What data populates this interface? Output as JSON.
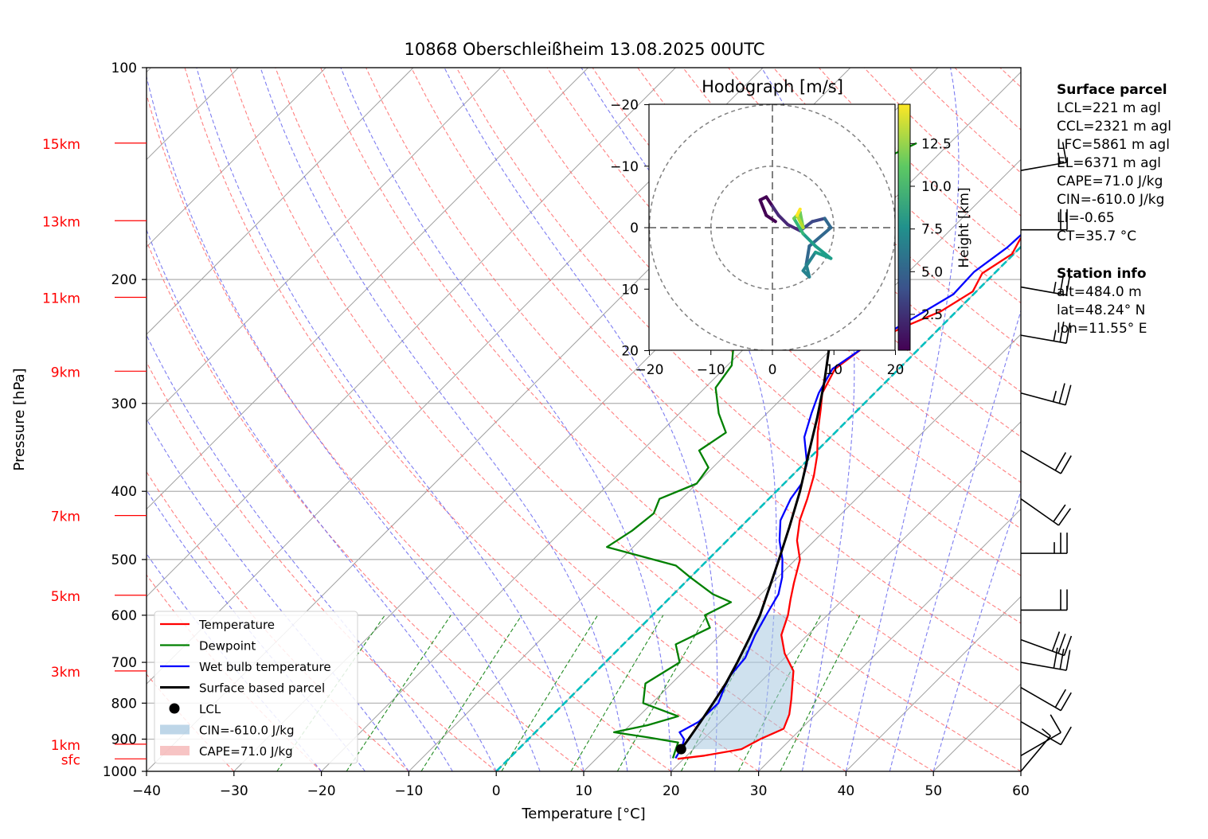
{
  "title": "10868 Oberschleißheim 13.08.2025 00UTC",
  "colors": {
    "temperature": "#ff0000",
    "dewpoint": "#008000",
    "wetbulb": "#0000ff",
    "parcel": "#000000",
    "cin_fill": "#a8c8e0",
    "cape_fill": "#f4b0b0",
    "dry_adiabat": "#ff6060",
    "moist_adiabat": "#6666ee",
    "mixing_ratio": "#228b22",
    "isotherm": "#a0a0a0",
    "zero_isotherm": "#00bfbf",
    "height_label": "#ff0000"
  },
  "chart_data": {
    "type": "line",
    "subtype": "skew-T log-P",
    "title": "10868 Oberschleißheim 13.08.2025 00UTC",
    "xlabel": "Temperature [°C]",
    "ylabel": "Pressure [hPa]",
    "xlim": [
      -40,
      60
    ],
    "ylim": [
      1000,
      100
    ],
    "y_scale": "log",
    "grid": true,
    "x_ticks": [
      "−40",
      "−30",
      "−20",
      "−10",
      "0",
      "10",
      "20",
      "30",
      "40",
      "50",
      "60"
    ],
    "y_ticks": [
      "100",
      "200",
      "300",
      "400",
      "500",
      "600",
      "700",
      "800",
      "900",
      "1000"
    ],
    "height_labels": [
      {
        "label": "15km",
        "p": 128
      },
      {
        "label": "13km",
        "p": 165
      },
      {
        "label": "11km",
        "p": 212
      },
      {
        "label": "9km",
        "p": 270
      },
      {
        "label": "7km",
        "p": 433
      },
      {
        "label": "5km",
        "p": 562
      },
      {
        "label": "3km",
        "p": 720
      },
      {
        "label": "1km",
        "p": 915
      },
      {
        "label": "sfc",
        "p": 960
      }
    ],
    "series": [
      {
        "name": "Temperature",
        "points": [
          [
            1.2,
            128
          ],
          [
            0.5,
            135
          ],
          [
            -0.8,
            140
          ],
          [
            -0.2,
            147
          ],
          [
            0.3,
            157
          ],
          [
            -0.5,
            166
          ],
          [
            -1.0,
            175
          ],
          [
            -0.2,
            184
          ],
          [
            -1.4,
            196
          ],
          [
            -0.4,
            208
          ],
          [
            -1.8,
            222
          ],
          [
            -4.5,
            235
          ],
          [
            -6.5,
            250
          ],
          [
            -7.3,
            268
          ],
          [
            -6.0,
            290
          ],
          [
            -4.4,
            305
          ],
          [
            -2.0,
            330
          ],
          [
            0.5,
            355
          ],
          [
            2.5,
            380
          ],
          [
            4.4,
            410
          ],
          [
            6.0,
            440
          ],
          [
            8.0,
            470
          ],
          [
            10.5,
            500
          ],
          [
            12.5,
            540
          ],
          [
            14.0,
            570
          ],
          [
            15.5,
            600
          ],
          [
            17.0,
            640
          ],
          [
            19.5,
            680
          ],
          [
            22.5,
            720
          ],
          [
            25.5,
            790
          ],
          [
            27.0,
            830
          ],
          [
            28.0,
            870
          ],
          [
            26.5,
            900
          ],
          [
            25.5,
            930
          ],
          [
            22.0,
            950
          ],
          [
            19.3,
            960
          ]
        ]
      },
      {
        "name": "Dewpoint",
        "points": [
          [
            -23.8,
            128
          ],
          [
            -25.8,
            135
          ],
          [
            -27.2,
            145
          ],
          [
            -27.5,
            160
          ],
          [
            -28.5,
            180
          ],
          [
            -28.9,
            200
          ],
          [
            -28.0,
            220
          ],
          [
            -27.5,
            230
          ],
          [
            -22.0,
            245
          ],
          [
            -19.5,
            265
          ],
          [
            -18.8,
            285
          ],
          [
            -15.5,
            310
          ],
          [
            -12.5,
            330
          ],
          [
            -13.5,
            350
          ],
          [
            -10.5,
            370
          ],
          [
            -10.0,
            390
          ],
          [
            -12.5,
            410
          ],
          [
            -11.5,
            430
          ],
          [
            -12.0,
            455
          ],
          [
            -13.0,
            480
          ],
          [
            -3.0,
            510
          ],
          [
            0.0,
            530
          ],
          [
            4.5,
            560
          ],
          [
            7.5,
            575
          ],
          [
            6.0,
            600
          ],
          [
            8.0,
            625
          ],
          [
            6.0,
            660
          ],
          [
            8.5,
            700
          ],
          [
            7.0,
            750
          ],
          [
            9.0,
            800
          ],
          [
            14.5,
            835
          ],
          [
            12.0,
            860
          ],
          [
            9.0,
            880
          ],
          [
            13.5,
            895
          ],
          [
            17.5,
            910
          ],
          [
            18.0,
            930
          ],
          [
            18.7,
            958
          ]
        ]
      },
      {
        "name": "Wet bulb temperature",
        "points": [
          [
            1.0,
            128
          ],
          [
            0.3,
            135
          ],
          [
            -1.0,
            142
          ],
          [
            -0.3,
            150
          ],
          [
            -1.2,
            165
          ],
          [
            -1.5,
            180
          ],
          [
            -2.5,
            195
          ],
          [
            -2.3,
            210
          ],
          [
            -4.5,
            230
          ],
          [
            -6.5,
            250
          ],
          [
            -7.6,
            268
          ],
          [
            -6.4,
            290
          ],
          [
            -4.9,
            310
          ],
          [
            -3.0,
            335
          ],
          [
            0.3,
            365
          ],
          [
            2.0,
            390
          ],
          [
            2.5,
            410
          ],
          [
            3.8,
            440
          ],
          [
            6.0,
            470
          ],
          [
            8.5,
            500
          ],
          [
            10.5,
            530
          ],
          [
            12.0,
            560
          ],
          [
            13.0,
            600
          ],
          [
            14.0,
            640
          ],
          [
            15.5,
            690
          ],
          [
            15.8,
            730
          ],
          [
            16.5,
            760
          ],
          [
            17.6,
            800
          ],
          [
            17.5,
            850
          ],
          [
            16.5,
            880
          ],
          [
            17.8,
            900
          ],
          [
            18.5,
            925
          ],
          [
            19.0,
            958
          ]
        ]
      },
      {
        "name": "Surface based parcel",
        "points": [
          [
            -27.5,
            128
          ],
          [
            -26.0,
            140
          ],
          [
            -24.0,
            155
          ],
          [
            -21.6,
            170
          ],
          [
            -18.5,
            190
          ],
          [
            -15.0,
            215
          ],
          [
            -11.0,
            245
          ],
          [
            -7.0,
            280
          ],
          [
            -3.7,
            315
          ],
          [
            -0.9,
            350
          ],
          [
            2.7,
            400
          ],
          [
            5.6,
            450
          ],
          [
            8.1,
            500
          ],
          [
            10.3,
            550
          ],
          [
            12.3,
            600
          ],
          [
            13.8,
            650
          ],
          [
            15.1,
            700
          ],
          [
            16.2,
            750
          ],
          [
            17.0,
            800
          ],
          [
            17.7,
            850
          ],
          [
            18.3,
            900
          ],
          [
            18.6,
            930
          ]
        ]
      }
    ],
    "lcl": {
      "label": "LCL",
      "t": 18.6,
      "p": 930
    },
    "legend": {
      "position": "lower-left",
      "entries": [
        "Temperature",
        "Dewpoint",
        "Wet bulb temperature",
        "Surface based parcel",
        "LCL",
        "CIN=-610.0 J/kg",
        "CAPE=71.0 J/kg"
      ]
    },
    "hodograph": {
      "title": "Hodograph [m/s]",
      "xlim": [
        -20,
        20
      ],
      "ylim": [
        -20,
        20
      ],
      "ticks": [
        "−20",
        "−10",
        "0",
        "10",
        "20"
      ],
      "rings": [
        10,
        20
      ],
      "colorbar_label": "Height [km]",
      "colorbar_ticks": [
        "2.5",
        "5.0",
        "7.5",
        "10.0",
        "12.5"
      ],
      "trace": [
        {
          "u": 0.5,
          "v": 1.0,
          "h": 0.5
        },
        {
          "u": -1.0,
          "v": 2.0,
          "h": 0.8
        },
        {
          "u": -2.0,
          "v": 4.5,
          "h": 1.1
        },
        {
          "u": -1.0,
          "v": 5.0,
          "h": 1.3
        },
        {
          "u": 0.0,
          "v": 3.5,
          "h": 1.5
        },
        {
          "u": 1.0,
          "v": 2.0,
          "h": 1.8
        },
        {
          "u": 2.5,
          "v": 0.5,
          "h": 2.2
        },
        {
          "u": 4.5,
          "v": -0.5,
          "h": 3.0
        },
        {
          "u": 6.5,
          "v": 1.0,
          "h": 3.8
        },
        {
          "u": 8.5,
          "v": 1.5,
          "h": 4.5
        },
        {
          "u": 9.5,
          "v": 0.0,
          "h": 5.2
        },
        {
          "u": 6.0,
          "v": -3.0,
          "h": 5.8
        },
        {
          "u": 5.5,
          "v": -6.0,
          "h": 6.2
        },
        {
          "u": 6.0,
          "v": -8.0,
          "h": 6.6
        },
        {
          "u": 5.0,
          "v": -7.0,
          "h": 7.0
        },
        {
          "u": 7.0,
          "v": -4.0,
          "h": 7.5
        },
        {
          "u": 9.5,
          "v": -5.0,
          "h": 8.0
        },
        {
          "u": 7.0,
          "v": -3.0,
          "h": 8.6
        },
        {
          "u": 5.0,
          "v": -1.0,
          "h": 9.5
        },
        {
          "u": 3.5,
          "v": 1.5,
          "h": 10.5
        },
        {
          "u": 4.5,
          "v": 2.5,
          "h": 11.5
        },
        {
          "u": 5.0,
          "v": 0.0,
          "h": 12.5
        },
        {
          "u": 4.0,
          "v": 2.0,
          "h": 13.5
        },
        {
          "u": 4.5,
          "v": 3.0,
          "h": 14.5
        }
      ]
    },
    "wind_barbs": [
      {
        "p": 140,
        "dir": 260,
        "speed": 15
      },
      {
        "p": 170,
        "dir": 270,
        "speed": 20
      },
      {
        "p": 205,
        "dir": 280,
        "speed": 25
      },
      {
        "p": 240,
        "dir": 280,
        "speed": 25
      },
      {
        "p": 290,
        "dir": 285,
        "speed": 25
      },
      {
        "p": 350,
        "dir": 300,
        "speed": 20
      },
      {
        "p": 410,
        "dir": 305,
        "speed": 20
      },
      {
        "p": 490,
        "dir": 270,
        "speed": 25
      },
      {
        "p": 590,
        "dir": 270,
        "speed": 20
      },
      {
        "p": 650,
        "dir": 290,
        "speed": 30
      },
      {
        "p": 700,
        "dir": 280,
        "speed": 30
      },
      {
        "p": 760,
        "dir": 300,
        "speed": 20
      },
      {
        "p": 850,
        "dir": 300,
        "speed": 10
      },
      {
        "p": 950,
        "dir": 240,
        "speed": 10
      },
      {
        "p": 1000,
        "dir": 220,
        "speed": 5
      }
    ]
  },
  "info": {
    "surface_parcel_title": "Surface parcel",
    "surface_parcel": [
      "LCL=221 m agl",
      "CCL=2321 m agl",
      "LFC=5861 m agl",
      "EL=6371 m agl",
      "CAPE=71.0 J/kg",
      "CIN=-610.0 J/kg",
      "LI=-0.65",
      "CT=35.7 °C"
    ],
    "station_title": "Station info",
    "station": [
      "alt=484.0 m",
      "lat=48.24° N",
      "lon=11.55° E"
    ]
  }
}
